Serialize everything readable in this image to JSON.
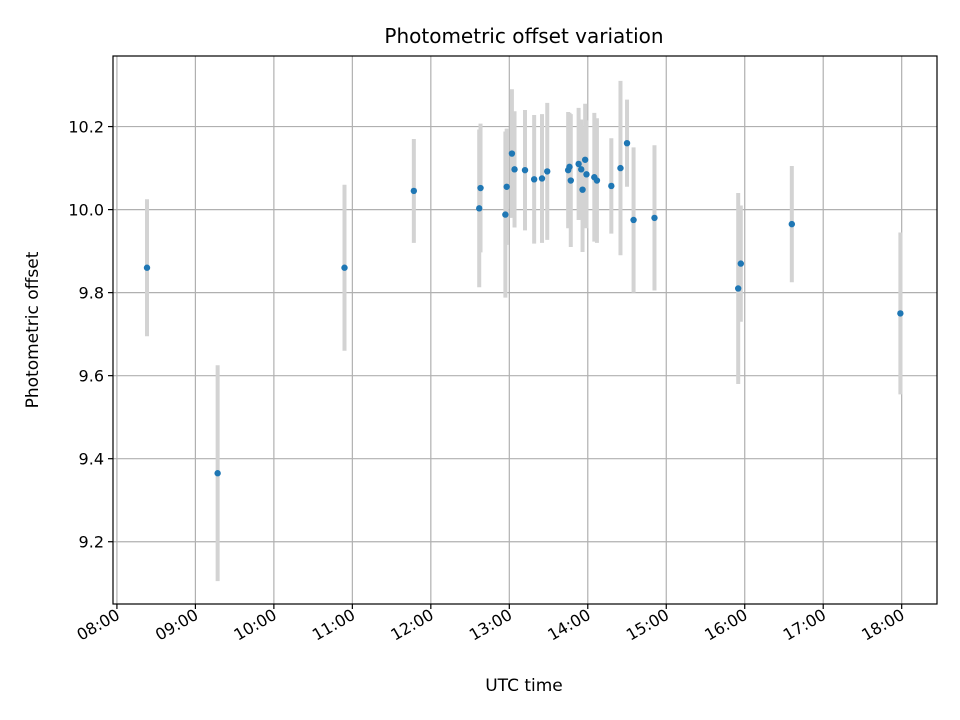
{
  "chart_data": {
    "type": "scatter",
    "title": "Photometric offset variation",
    "xlabel": "UTC time",
    "ylabel": "Photometric offset",
    "x_ticks": [
      "08:00",
      "09:00",
      "10:00",
      "11:00",
      "12:00",
      "13:00",
      "14:00",
      "15:00",
      "16:00",
      "17:00",
      "18:00"
    ],
    "y_ticks": [
      "9.2",
      "9.4",
      "9.6",
      "9.8",
      "10.0",
      "10.2"
    ],
    "xlim": [
      "07:57",
      "18:27"
    ],
    "ylim": [
      9.05,
      10.37
    ],
    "grid": true,
    "colors": {
      "points": "#1f77b4",
      "errorbars": "#d3d3d3",
      "grid": "#b0b0b0"
    },
    "points": [
      {
        "t": "08:23",
        "y": 9.86,
        "err": 0.165
      },
      {
        "t": "09:17",
        "y": 9.365,
        "err": 0.26
      },
      {
        "t": "10:54",
        "y": 9.86,
        "err": 0.2
      },
      {
        "t": "11:47",
        "y": 10.045,
        "err": 0.125
      },
      {
        "t": "12:37",
        "y": 10.003,
        "err": 0.19
      },
      {
        "t": "12:38",
        "y": 10.052,
        "err": 0.155
      },
      {
        "t": "12:57",
        "y": 9.988,
        "err": 0.2
      },
      {
        "t": "12:58",
        "y": 10.055,
        "err": 0.14
      },
      {
        "t": "13:02",
        "y": 10.135,
        "err": 0.155
      },
      {
        "t": "13:04",
        "y": 10.097,
        "err": 0.14
      },
      {
        "t": "13:12",
        "y": 10.095,
        "err": 0.145
      },
      {
        "t": "13:19",
        "y": 10.073,
        "err": 0.155
      },
      {
        "t": "13:25",
        "y": 10.075,
        "err": 0.155
      },
      {
        "t": "13:29",
        "y": 10.092,
        "err": 0.165
      },
      {
        "t": "13:45",
        "y": 10.095,
        "err": 0.14
      },
      {
        "t": "13:46",
        "y": 10.103,
        "err": 0.13
      },
      {
        "t": "13:47",
        "y": 10.07,
        "err": 0.16
      },
      {
        "t": "13:53",
        "y": 10.11,
        "err": 0.135
      },
      {
        "t": "13:55",
        "y": 10.097,
        "err": 0.12
      },
      {
        "t": "13:56",
        "y": 10.048,
        "err": 0.15
      },
      {
        "t": "13:58",
        "y": 10.12,
        "err": 0.135
      },
      {
        "t": "13:59",
        "y": 10.085,
        "err": 0.13
      },
      {
        "t": "14:05",
        "y": 10.078,
        "err": 0.155
      },
      {
        "t": "14:07",
        "y": 10.07,
        "err": 0.15
      },
      {
        "t": "14:18",
        "y": 10.057,
        "err": 0.115
      },
      {
        "t": "14:25",
        "y": 10.1,
        "err": 0.21
      },
      {
        "t": "14:30",
        "y": 10.16,
        "err": 0.105
      },
      {
        "t": "14:35",
        "y": 9.975,
        "err": 0.175
      },
      {
        "t": "14:51",
        "y": 9.98,
        "err": 0.175
      },
      {
        "t": "15:55",
        "y": 9.81,
        "err": 0.23
      },
      {
        "t": "15:57",
        "y": 9.87,
        "err": 0.14
      },
      {
        "t": "16:36",
        "y": 9.965,
        "err": 0.14
      },
      {
        "t": "17:59",
        "y": 9.75,
        "err": 0.195
      }
    ]
  }
}
